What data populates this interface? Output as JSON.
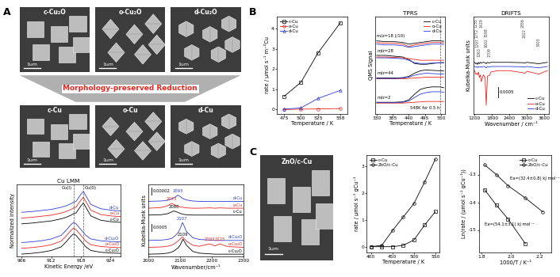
{
  "panel_labels": [
    "A",
    "B",
    "C"
  ],
  "banner": "Morphology-preserved Reduction",
  "images": {
    "A_top": [
      {
        "label": "c-Cu₂O",
        "scale_bar": "1um"
      },
      {
        "label": "o-Cu₂O",
        "scale_bar": "1um"
      },
      {
        "label": "d-Cu₂O",
        "scale_bar": "1um"
      }
    ],
    "A_bottom": [
      {
        "label": "c-Cu",
        "scale_bar": "1um"
      },
      {
        "label": "o-Cu",
        "scale_bar": "1um"
      },
      {
        "label": "d-Cu",
        "scale_bar": "1um"
      }
    ],
    "C": [
      {
        "label": "ZnO/c-Cu",
        "scale_bar": "1um"
      }
    ]
  },
  "chart_data": [
    {
      "type": "line",
      "title": "Cu LMM",
      "xlabel": "Kinetic Energy /eV",
      "ylabel": "Normalized intensity",
      "x": [
        906,
        908,
        910,
        912,
        914,
        915,
        916,
        916.5,
        917,
        918,
        918.5,
        919,
        920,
        922,
        924,
        926
      ],
      "xlim": [
        905,
        926
      ],
      "xticks": [
        906,
        912,
        918,
        924
      ],
      "ylim": [
        0,
        10
      ],
      "yticks": [],
      "tick_labels": "x",
      "series": [
        {
          "name": "d-Cu",
          "color": "#2a3ad6",
          "values": [
            6.1,
            6.2,
            6.35,
            6.5,
            6.8,
            7.0,
            7.3,
            7.5,
            7.6,
            8.6,
            9.0,
            8.4,
            7.2,
            6.6,
            6.4,
            6.3
          ]
        },
        {
          "name": "o-Cu",
          "color": "#e8251f",
          "values": [
            5.3,
            5.4,
            5.55,
            5.7,
            6.0,
            6.2,
            6.5,
            6.7,
            6.8,
            7.8,
            8.2,
            7.6,
            6.4,
            5.8,
            5.6,
            5.5
          ]
        },
        {
          "name": "c-Cu",
          "color": "#000000",
          "values": [
            4.5,
            4.6,
            4.75,
            4.9,
            5.2,
            5.4,
            5.7,
            5.9,
            6.0,
            7.0,
            7.4,
            6.8,
            5.6,
            5.0,
            4.8,
            4.7
          ]
        },
        {
          "name": "d-Cu₂O",
          "color": "#2a3ad6",
          "values": [
            1.9,
            2.0,
            2.15,
            2.4,
            2.9,
            3.6,
            4.4,
            4.7,
            4.5,
            3.7,
            3.3,
            2.9,
            2.4,
            2.15,
            2.05,
            2.0
          ]
        },
        {
          "name": "o-Cu₂O",
          "color": "#e8251f",
          "values": [
            1.1,
            1.2,
            1.35,
            1.6,
            2.1,
            2.8,
            3.6,
            3.9,
            3.7,
            2.9,
            2.5,
            2.1,
            1.6,
            1.35,
            1.25,
            1.2
          ]
        },
        {
          "name": "c-Cu₂O",
          "color": "#000000",
          "values": [
            0.3,
            0.4,
            0.55,
            0.8,
            1.3,
            2.0,
            2.8,
            3.1,
            2.9,
            2.1,
            1.7,
            1.3,
            0.8,
            0.55,
            0.45,
            0.4
          ]
        }
      ],
      "annotations": [
        {
          "text": "Cu(I)",
          "x": 916.5
        },
        {
          "text": "Cu(0)",
          "x": 918.5
        }
      ]
    },
    {
      "type": "line",
      "xlabel": "Wavenumber/cm⁻¹",
      "ylabel": "Kubelka-Munk units",
      "x": [
        2000,
        2040,
        2060,
        2073,
        2080,
        2093,
        2100,
        2107,
        2109,
        2120,
        2140,
        2160,
        2193,
        2210,
        2225,
        2250,
        2300
      ],
      "xlim": [
        2000,
        2300
      ],
      "xticks": [
        2000,
        2100,
        2200,
        2300
      ],
      "ylim": [
        0,
        10.5
      ],
      "yticks": [],
      "tick_labels": "x",
      "series": [
        {
          "name": "d-Cu",
          "color": "#2a3ad6",
          "values": [
            8.0,
            8.05,
            8.15,
            8.35,
            8.5,
            8.9,
            8.7,
            8.45,
            8.4,
            8.2,
            8.05,
            8.0,
            8.0,
            8.0,
            8.0,
            8.0,
            8.0
          ]
        },
        {
          "name": "o-Cu",
          "color": "#e8251f",
          "values": [
            7.0,
            7.1,
            7.35,
            7.7,
            7.55,
            7.3,
            7.2,
            7.15,
            7.12,
            7.05,
            7.0,
            7.0,
            7.05,
            7.0,
            7.05,
            7.0,
            7.0
          ]
        },
        {
          "name": "c-Cu",
          "color": "#000000",
          "values": [
            6.0,
            6.05,
            6.2,
            6.45,
            6.6,
            6.4,
            6.25,
            6.15,
            6.12,
            6.05,
            6.0,
            6.0,
            6.0,
            6.0,
            6.0,
            6.0,
            6.0
          ]
        },
        {
          "name": "d-Cu₂O",
          "color": "#2a3ad6",
          "values": [
            2.3,
            2.35,
            2.45,
            2.6,
            2.8,
            3.4,
            4.0,
            4.9,
            4.8,
            3.6,
            2.7,
            2.45,
            2.35,
            2.3,
            2.3,
            2.3,
            2.3
          ]
        },
        {
          "name": "o-Cu₂O",
          "color": "#e8251f",
          "values": [
            1.3,
            1.35,
            1.45,
            1.6,
            1.75,
            2.2,
            2.5,
            2.8,
            2.75,
            2.2,
            1.6,
            1.45,
            1.8,
            1.5,
            1.8,
            1.4,
            1.3
          ]
        },
        {
          "name": "c-Cu₂O",
          "color": "#000000",
          "values": [
            0.3,
            0.35,
            0.45,
            0.6,
            0.75,
            1.2,
            1.6,
            2.3,
            2.5,
            1.6,
            0.7,
            0.45,
            0.35,
            0.3,
            0.3,
            0.3,
            0.3
          ]
        }
      ],
      "annotations": [
        {
          "text": "2093",
          "x": 2093,
          "series": "d-Cu"
        },
        {
          "text": "2073",
          "x": 2073,
          "series": "o-Cu"
        },
        {
          "text": "2080",
          "x": 2080,
          "series": "c-Cu"
        },
        {
          "text": "2107",
          "x": 2107,
          "series": "d-Cu₂O"
        },
        {
          "text": "2109",
          "x": 2109,
          "series": "c-Cu₂O"
        },
        {
          "text": "2193",
          "x": 2193,
          "series": "o-Cu₂O"
        },
        {
          "text": "2225",
          "x": 2225,
          "series": "o-Cu₂O"
        }
      ],
      "scale_bars": [
        "0.00002",
        "0.0005"
      ]
    },
    {
      "type": "line",
      "xlabel": "Temperature / K",
      "ylabel": "rate / μmol s⁻¹ m⁻²Cu",
      "x": [
        475,
        500,
        525,
        558
      ],
      "xlim": [
        465,
        568
      ],
      "xticks": [
        475,
        500,
        525,
        558
      ],
      "ylim": [
        -0.2,
        4.6
      ],
      "yticks": [
        0,
        1,
        2,
        3,
        4
      ],
      "legend": "upper left",
      "series": [
        {
          "name": "c-Cu",
          "color": "#000000",
          "marker": "square",
          "line_style": "solid",
          "values": [
            0.65,
            1.35,
            2.8,
            4.3
          ]
        },
        {
          "name": "o-Cu",
          "color": "#e8251f",
          "marker": "circle",
          "line_style": "solid",
          "values": [
            0.0,
            0.02,
            0.03,
            0.05
          ]
        },
        {
          "name": "d-Cu",
          "color": "#2a3ad6",
          "marker": "triangle",
          "line_style": "solid",
          "values": [
            0.02,
            0.08,
            0.55,
            0.95
          ]
        }
      ]
    },
    {
      "type": "line",
      "title": "TPRS",
      "xlabel": "Temperature / K",
      "ylabel": "QMS Signal",
      "x": [
        330,
        360,
        390,
        420,
        440,
        460,
        480,
        500,
        520,
        548,
        560
      ],
      "xlim": [
        325,
        565
      ],
      "xticks": [
        330,
        385,
        440,
        495,
        550
      ],
      "ylim": [
        0,
        12
      ],
      "yticks": [],
      "tick_labels": "x",
      "legend": "upper right",
      "traces": [
        {
          "label": "m/z=18 (/10)",
          "series": [
            {
              "name": "c-Cu",
              "color": "#000000",
              "values": [
                9.0,
                8.9,
                8.9,
                8.8,
                8.6,
                8.7,
                8.8,
                8.9,
                9.0,
                9.0,
                8.95
              ]
            },
            {
              "name": "o-Cu",
              "color": "#e8251f",
              "values": [
                8.8,
                8.7,
                8.7,
                8.6,
                8.3,
                8.5,
                8.6,
                8.7,
                8.8,
                8.8,
                8.75
              ]
            },
            {
              "name": "d-Cu",
              "color": "#2a3ad6",
              "values": [
                8.6,
                8.5,
                8.5,
                8.4,
                8.2,
                8.3,
                8.4,
                8.5,
                8.6,
                8.6,
                8.55
              ]
            }
          ]
        },
        {
          "label": "m/z=28",
          "series": [
            {
              "name": "c-Cu",
              "color": "#000000",
              "values": [
                7.2,
                7.2,
                7.1,
                7.0,
                6.7,
                6.2,
                6.1,
                6.1,
                6.2,
                6.3,
                6.3
              ]
            },
            {
              "name": "o-Cu",
              "color": "#e8251f",
              "values": [
                7.0,
                7.0,
                6.95,
                6.9,
                6.8,
                6.7,
                6.6,
                6.6,
                6.6,
                6.6,
                6.6
              ]
            },
            {
              "name": "d-Cu",
              "color": "#2a3ad6",
              "values": [
                6.9,
                6.9,
                6.85,
                6.8,
                6.6,
                6.3,
                6.2,
                6.2,
                6.25,
                6.3,
                6.3
              ]
            }
          ]
        },
        {
          "label": "m/z=44",
          "series": [
            {
              "name": "c-Cu",
              "color": "#000000",
              "values": [
                4.4,
                4.4,
                4.4,
                4.45,
                4.6,
                5.0,
                5.3,
                5.4,
                5.35,
                5.3,
                5.3
              ]
            },
            {
              "name": "o-Cu",
              "color": "#e8251f",
              "values": [
                4.3,
                4.3,
                4.3,
                4.3,
                4.35,
                4.4,
                4.45,
                4.5,
                4.5,
                4.5,
                4.5
              ]
            },
            {
              "name": "d-Cu",
              "color": "#2a3ad6",
              "values": [
                4.35,
                4.35,
                4.35,
                4.4,
                4.5,
                4.75,
                4.9,
                5.0,
                4.95,
                4.9,
                4.9
              ]
            }
          ]
        },
        {
          "label": "m/z=2",
          "series": [
            {
              "name": "c-Cu",
              "color": "#000000",
              "values": [
                1.4,
                1.4,
                1.4,
                1.45,
                1.7,
                2.4,
                3.0,
                3.2,
                3.3,
                3.3,
                3.2
              ]
            },
            {
              "name": "o-Cu",
              "color": "#e8251f",
              "values": [
                1.3,
                1.3,
                1.3,
                1.3,
                1.35,
                1.4,
                1.45,
                1.5,
                1.5,
                1.5,
                1.5
              ]
            },
            {
              "name": "d-Cu",
              "color": "#2a3ad6",
              "values": [
                1.35,
                1.35,
                1.35,
                1.4,
                1.55,
                2.0,
                2.4,
                2.6,
                2.7,
                2.7,
                2.65
              ]
            }
          ]
        }
      ],
      "annotations": [
        {
          "text": "548K for 0.5 h",
          "x": 548
        }
      ]
    },
    {
      "type": "line",
      "title": "DRIFTS",
      "xlabel": "Wavenumber / cm⁻¹",
      "ylabel": "Kubelka-Munk units",
      "x": [
        1200,
        1235,
        1272,
        1297,
        1330,
        1363,
        1400,
        1429,
        1500,
        1560,
        1598,
        1640,
        1709,
        1760,
        2000,
        2400,
        2856,
        2922,
        3000,
        3403,
        3700
      ],
      "xlim": [
        1150,
        3750
      ],
      "xticks": [
        1200,
        1800,
        2400,
        3000,
        3600
      ],
      "ylim": [
        0,
        14
      ],
      "yticks": [],
      "tick_labels": "x",
      "legend": "lower right",
      "series": [
        {
          "name": "c-Cu",
          "color": "#000000",
          "values": [
            7.4,
            7.2,
            7.3,
            7.1,
            7.4,
            7.2,
            7.4,
            7.3,
            7.4,
            7.35,
            7.2,
            7.4,
            7.3,
            7.4,
            7.4,
            7.4,
            7.35,
            7.3,
            7.4,
            7.2,
            7.4
          ]
        },
        {
          "name": "o-Cu",
          "color": "#e8251f",
          "values": [
            6.2,
            5.7,
            5.8,
            5.6,
            6.0,
            5.2,
            5.6,
            4.6,
            5.6,
            5.2,
            1.2,
            5.4,
            5.5,
            6.0,
            6.2,
            6.2,
            5.9,
            5.8,
            6.1,
            5.7,
            6.2
          ]
        },
        {
          "name": "d-Cu",
          "color": "#2a3ad6",
          "values": [
            6.8,
            6.7,
            6.75,
            6.65,
            6.8,
            6.7,
            6.75,
            6.7,
            6.8,
            6.75,
            6.6,
            6.8,
            6.7,
            6.8,
            6.8,
            6.8,
            6.75,
            6.7,
            6.8,
            6.6,
            6.8
          ]
        }
      ],
      "annotations": [
        {
          "text": "1235",
          "x": 1235
        },
        {
          "text": "1272",
          "x": 1272
        },
        {
          "text": "1297",
          "x": 1297
        },
        {
          "text": "1363",
          "x": 1363
        },
        {
          "text": "1429",
          "x": 1429
        },
        {
          "text": "1598",
          "x": 1598
        },
        {
          "text": "1602",
          "x": 1602
        },
        {
          "text": "1709",
          "x": 1709
        },
        {
          "text": "2856",
          "x": 2856
        },
        {
          "text": "2922",
          "x": 2922
        },
        {
          "text": "3403",
          "x": 3403
        }
      ],
      "scale_bars": [
        "0.0005"
      ]
    },
    {
      "type": "line",
      "xlabel": "Temperature / K",
      "ylabel": "rate / μmol s⁻¹ gCu⁻¹",
      "x": [
        400,
        425,
        450,
        475,
        500,
        525,
        550
      ],
      "xlim": [
        390,
        560
      ],
      "xticks": [
        400,
        450,
        500,
        550
      ],
      "ylim": [
        -0.2,
        3.4
      ],
      "yticks": [
        0,
        1,
        2,
        3
      ],
      "legend": "upper left",
      "series": [
        {
          "name": "c-Cu",
          "color": "#000000",
          "marker": "square",
          "line_style": "solid",
          "values": [
            0.0,
            0.0,
            0.0,
            0.05,
            0.25,
            0.8,
            1.3
          ]
        },
        {
          "name": "ZnO/c-Cu",
          "color": "#000000",
          "marker": "circle",
          "line_style": "solid",
          "values": [
            0.0,
            0.05,
            0.6,
            1.1,
            1.6,
            2.4,
            3.25
          ]
        }
      ]
    },
    {
      "type": "line",
      "xlabel": "1000/T / K⁻¹",
      "ylabel": "Ln(rate / (μmol s⁻¹ gCu⁻¹))",
      "xlim": [
        1.78,
        2.28
      ],
      "xticks": [
        1.8,
        2.0,
        2.2
      ],
      "ylim": [
        -15.8,
        -12.3
      ],
      "yticks": [
        -15,
        -14,
        -13
      ],
      "legend": "upper right",
      "series": [
        {
          "name": "c-Cu",
          "color": "#000000",
          "marker": "square",
          "line_style": "solid",
          "x": [
            1.82,
            1.9,
            1.98,
            2.1
          ],
          "values": [
            -13.55,
            -14.1,
            -14.6,
            -15.5
          ]
        },
        {
          "name": "ZnO/c-Cu",
          "color": "#000000",
          "marker": "circle",
          "line_style": "solid",
          "x": [
            1.82,
            1.9,
            1.98,
            2.1,
            2.22
          ],
          "values": [
            -12.65,
            -13.0,
            -13.4,
            -13.85,
            -14.35
          ]
        }
      ],
      "annotations": [
        {
          "text": "Ea=(32.4±0.8) kJ mol⁻¹",
          "series": "ZnO/c-Cu"
        },
        {
          "text": "Ea=(54.1±3.1) kJ mol⁻¹",
          "series": "c-Cu"
        }
      ]
    }
  ]
}
